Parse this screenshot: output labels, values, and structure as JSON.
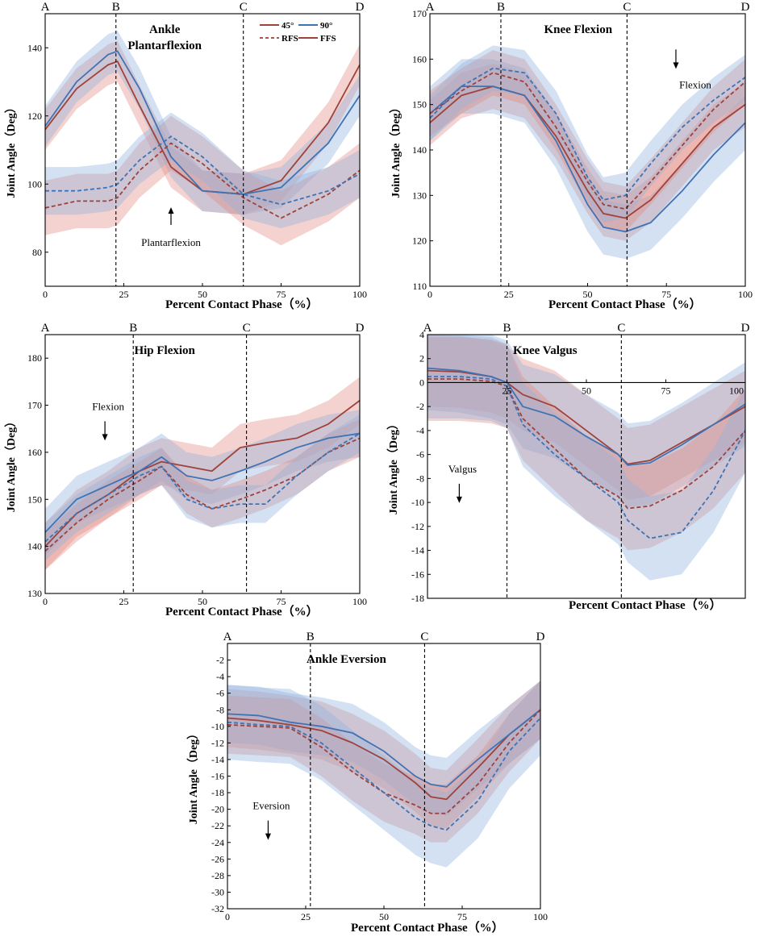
{
  "colors": {
    "red_line": "#a0413a",
    "blue_line": "#3f73b4",
    "red_band": "#e28a80",
    "blue_band": "#8fb1dc"
  },
  "legend": {
    "label_45": "45°",
    "label_90": "90°",
    "label_rfs": "RFS",
    "label_ffs": "FFS"
  },
  "chart_data": [
    {
      "id": "ankle_pf",
      "type": "line",
      "title": "Ankle Plantarflexion",
      "title_lines": [
        "Ankle",
        "Plantarflexion"
      ],
      "xlabel": "Percent Contact Phase（%）",
      "ylabel": "Joint Angle（Deg）",
      "xlim": [
        0,
        100
      ],
      "ylim": [
        70,
        150
      ],
      "yticks": [
        80,
        100,
        120,
        140
      ],
      "xticks": [
        0,
        25,
        50,
        75,
        100
      ],
      "phases": {
        "labels": [
          "A",
          "B",
          "C",
          "D"
        ],
        "at": [
          0,
          22.5,
          63,
          100
        ]
      },
      "annotation": {
        "text": "Plantarflexion",
        "arrow": "up",
        "x": 40,
        "y": 88
      },
      "has_legend": true,
      "x": [
        0,
        10,
        20,
        23,
        30,
        40,
        50,
        63,
        75,
        90,
        100
      ],
      "series": [
        {
          "name": "45° FFS",
          "color": "red",
          "dash": false,
          "y": [
            116,
            128,
            135,
            136,
            123,
            105,
            98,
            97,
            101,
            118,
            135
          ],
          "sd": 6
        },
        {
          "name": "90° FFS",
          "color": "blue",
          "dash": false,
          "y": [
            117,
            130,
            138,
            139,
            128,
            108,
            98,
            97,
            99,
            112,
            126
          ],
          "sd": 6
        },
        {
          "name": "45° RFS",
          "color": "red",
          "dash": true,
          "y": [
            93,
            95,
            95,
            96,
            104,
            112,
            106,
            96,
            90,
            97,
            104
          ],
          "sd": 8
        },
        {
          "name": "90° RFS",
          "color": "blue",
          "dash": true,
          "y": [
            98,
            98,
            99,
            100,
            107,
            114,
            108,
            97,
            94,
            98,
            103
          ],
          "sd": 7
        }
      ]
    },
    {
      "id": "knee_flex",
      "type": "line",
      "title": "Knee Flexion",
      "title_lines": [
        "Knee Flexion"
      ],
      "xlabel": "Percent Contact Phase（%）",
      "ylabel": "Joint Angle（Deg）",
      "xlim": [
        0,
        100
      ],
      "ylim": [
        110,
        170
      ],
      "yticks": [
        110,
        120,
        130,
        140,
        150,
        160,
        170
      ],
      "xticks": [
        0,
        25,
        50,
        75,
        100
      ],
      "phases": {
        "labels": [
          "A",
          "B",
          "C",
          "D"
        ],
        "at": [
          0,
          22.5,
          62.5,
          100
        ]
      },
      "annotation": {
        "text": "Flexion",
        "arrow": "down",
        "x": 78,
        "y": 160
      },
      "has_legend": false,
      "x": [
        0,
        10,
        20,
        30,
        40,
        50,
        55,
        62,
        70,
        80,
        90,
        100
      ],
      "series": [
        {
          "name": "45° FFS",
          "color": "red",
          "dash": false,
          "y": [
            146,
            152,
            154,
            152,
            143,
            131,
            126,
            125,
            129,
            137,
            145,
            150
          ],
          "sd": 5
        },
        {
          "name": "90° FFS",
          "color": "blue",
          "dash": false,
          "y": [
            148,
            154,
            154,
            152,
            142,
            128,
            123,
            122,
            124,
            131,
            139,
            146
          ],
          "sd": 6
        },
        {
          "name": "45° RFS",
          "color": "red",
          "dash": true,
          "y": [
            148,
            153,
            157,
            155,
            145,
            133,
            128,
            127,
            133,
            141,
            149,
            155
          ],
          "sd": 5
        },
        {
          "name": "90° RFS",
          "color": "blue",
          "dash": true,
          "y": [
            147,
            154,
            158,
            157,
            148,
            134,
            129,
            130,
            137,
            145,
            151,
            156
          ],
          "sd": 5
        }
      ]
    },
    {
      "id": "hip_flex",
      "type": "line",
      "title": "Hip Flexion",
      "title_lines": [
        "Hip Flexion"
      ],
      "xlabel": "Percent Contact Phase（%）",
      "ylabel": "Joint Angle（Deg）",
      "xlim": [
        0,
        100
      ],
      "ylim": [
        130,
        185
      ],
      "yticks": [
        130,
        140,
        150,
        160,
        170,
        180
      ],
      "xticks": [
        0,
        25,
        50,
        75,
        100
      ],
      "phases": {
        "labels": [
          "A",
          "B",
          "C",
          "D"
        ],
        "at": [
          0,
          28,
          64,
          100
        ]
      },
      "annotation": {
        "text": "Flexion",
        "arrow": "down",
        "x": 19,
        "y": 169
      },
      "has_legend": false,
      "x": [
        0,
        10,
        20,
        30,
        37,
        45,
        53,
        62,
        70,
        80,
        90,
        100
      ],
      "series": [
        {
          "name": "45° FFS",
          "color": "red",
          "dash": false,
          "y": [
            140,
            147,
            151,
            156,
            158,
            157,
            156,
            161,
            162,
            163,
            166,
            171
          ],
          "sd": 5
        },
        {
          "name": "90° FFS",
          "color": "blue",
          "dash": false,
          "y": [
            143,
            150,
            153,
            156,
            159,
            155,
            154,
            156,
            158,
            161,
            163,
            164
          ],
          "sd": 5
        },
        {
          "name": "45° RFS",
          "color": "red",
          "dash": true,
          "y": [
            139,
            145,
            150,
            154,
            157,
            151,
            148,
            150,
            152,
            155,
            160,
            163
          ],
          "sd": 4
        },
        {
          "name": "90° RFS",
          "color": "blue",
          "dash": true,
          "y": [
            141,
            147,
            151,
            155,
            157,
            150,
            148,
            149,
            149,
            155,
            160,
            164
          ],
          "sd": 4
        }
      ]
    },
    {
      "id": "knee_valgus",
      "type": "line",
      "title": "Knee Valgus",
      "title_lines": [
        "Knee Valgus"
      ],
      "xlabel": "Percent Contact Phase（%）",
      "ylabel": "Joint Angle（Deg）",
      "xlim": [
        0,
        100
      ],
      "ylim": [
        -18,
        4
      ],
      "yticks": [
        -18,
        -16,
        -14,
        -12,
        -10,
        -8,
        -6,
        -4,
        -2,
        0,
        2,
        4
      ],
      "xticks": [
        25,
        50,
        75,
        100
      ],
      "xaxis_at_zero": true,
      "phases": {
        "labels": [
          "A",
          "B",
          "C",
          "D"
        ],
        "at": [
          0,
          25,
          61,
          100
        ]
      },
      "annotation": {
        "text": "Valgus",
        "arrow": "down",
        "x": 10,
        "y": -7.5
      },
      "has_legend": false,
      "x": [
        0,
        10,
        20,
        25,
        30,
        40,
        50,
        60,
        63,
        70,
        80,
        90,
        100
      ],
      "series": [
        {
          "name": "45° FFS",
          "color": "red",
          "dash": false,
          "y": [
            1,
            0.9,
            0.5,
            0,
            -1,
            -2,
            -4,
            -6,
            -6.8,
            -6.5,
            -5,
            -3.5,
            -2
          ],
          "sd": 3
        },
        {
          "name": "90° FFS",
          "color": "blue",
          "dash": false,
          "y": [
            1.2,
            1,
            0.5,
            0,
            -2,
            -2.8,
            -4.5,
            -6,
            -6.9,
            -6.7,
            -5.2,
            -3.5,
            -1.8
          ],
          "sd": 3.5
        },
        {
          "name": "45° RFS",
          "color": "red",
          "dash": true,
          "y": [
            0.3,
            0.3,
            0.1,
            -0.3,
            -3,
            -5.5,
            -8,
            -9.5,
            -10.5,
            -10.3,
            -9,
            -7,
            -4
          ],
          "sd": 3.5
        },
        {
          "name": "90° RFS",
          "color": "blue",
          "dash": true,
          "y": [
            0.5,
            0.5,
            0.3,
            -0.3,
            -3.5,
            -6,
            -8,
            -10,
            -11.5,
            -13,
            -12.5,
            -9,
            -4
          ],
          "sd": 3.5
        }
      ]
    },
    {
      "id": "ankle_ev",
      "type": "line",
      "title": "Ankle Eversion",
      "title_lines": [
        "Ankle Eversion"
      ],
      "xlabel": "Percent Contact Phase（%）",
      "ylabel": "Joint Angle（Deg）",
      "xlim": [
        0,
        100
      ],
      "ylim": [
        -32,
        0
      ],
      "yticks": [
        -32,
        -30,
        -28,
        -26,
        -24,
        -22,
        -20,
        -18,
        -16,
        -14,
        -12,
        -10,
        -8,
        -6,
        -4,
        -2
      ],
      "xticks": [
        0,
        25,
        50,
        75,
        100
      ],
      "phases": {
        "labels": [
          "A",
          "B",
          "C",
          "D"
        ],
        "at": [
          0,
          26.5,
          63,
          100
        ]
      },
      "annotation": {
        "text": "Eversion",
        "arrow": "down",
        "x": 13,
        "y": -20
      },
      "has_legend": false,
      "x": [
        0,
        10,
        20,
        30,
        40,
        50,
        60,
        65,
        70,
        80,
        90,
        100
      ],
      "series": [
        {
          "name": "45° FFS",
          "color": "red",
          "dash": false,
          "y": [
            -9,
            -9.3,
            -9.8,
            -10.5,
            -12,
            -14,
            -16.8,
            -18.5,
            -18.8,
            -15,
            -11,
            -8
          ],
          "sd": 3.5
        },
        {
          "name": "90° FFS",
          "color": "blue",
          "dash": false,
          "y": [
            -8.5,
            -8.7,
            -9.5,
            -10,
            -10.8,
            -13,
            -16,
            -17,
            -17.3,
            -14,
            -11,
            -8
          ],
          "sd": 3.5
        },
        {
          "name": "45° RFS",
          "color": "red",
          "dash": true,
          "y": [
            -9.8,
            -10,
            -10.2,
            -12.5,
            -15.5,
            -18,
            -19.5,
            -20.5,
            -20.5,
            -17,
            -12,
            -8
          ],
          "sd": 3.5
        },
        {
          "name": "90° RFS",
          "color": "blue",
          "dash": true,
          "y": [
            -9.5,
            -9.8,
            -10,
            -12,
            -15,
            -18,
            -21,
            -22,
            -22.5,
            -19,
            -13,
            -9
          ],
          "sd": 4.5
        }
      ]
    }
  ]
}
